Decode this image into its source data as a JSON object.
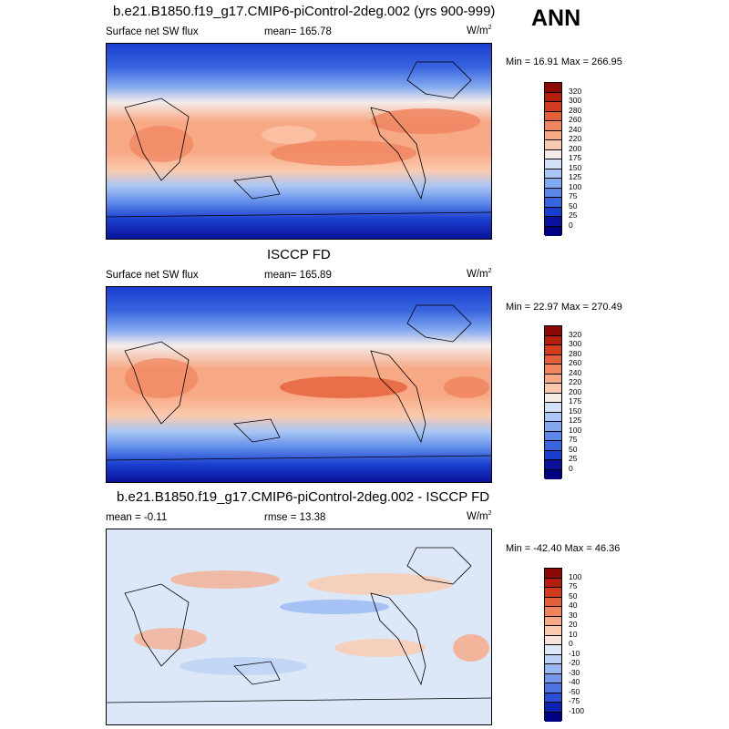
{
  "season": "ANN",
  "palette_full": [
    "#ffffff",
    "#000000",
    "#08088a",
    "#0a1ec8",
    "#1432d2",
    "#1e50e0",
    "#2864e6",
    "#3c82f0",
    "#5a9bf5",
    "#8cb9fa",
    "#b4d2fa",
    "#dce9f5",
    "#fae6dc",
    "#fad2b9",
    "#faaf8c",
    "#f58c64",
    "#eb6446",
    "#e63c28",
    "#c81e14",
    "#961006"
  ],
  "panels": [
    {
      "title": "b.e21.B1850.f19_g17.CMIP6-piControl-2deg.002 (yrs 900-999)",
      "left_label": "Surface net SW flux",
      "center_label": "mean= 165.78",
      "units_base": "W/m",
      "units_exp": "2",
      "minmax": "Min =  16.91 Max = 266.95",
      "colorbar_labels": [
        "320",
        "300",
        "280",
        "260",
        "240",
        "220",
        "200",
        "175",
        "150",
        "125",
        "100",
        "75",
        "50",
        "25",
        "0"
      ]
    },
    {
      "title": "ISCCP FD",
      "left_label": "Surface net SW flux",
      "center_label": "mean= 165.89",
      "units_base": "W/m",
      "units_exp": "2",
      "minmax": "Min =  22.97 Max = 270.49",
      "colorbar_labels": [
        "320",
        "300",
        "280",
        "260",
        "240",
        "220",
        "200",
        "175",
        "150",
        "125",
        "100",
        "75",
        "50",
        "25",
        "0"
      ]
    },
    {
      "title": "b.e21.B1850.f19_g17.CMIP6-piControl-2deg.002 - ISCCP FD",
      "left_label": "mean =  -0.11",
      "center_label": "rmse =  13.38",
      "units_base": "W/m",
      "units_exp": "2",
      "minmax": "Min = -42.40 Max =  46.36",
      "colorbar_labels": [
        "100",
        "75",
        "50",
        "40",
        "30",
        "20",
        "10",
        "0",
        "-10",
        "-20",
        "-30",
        "-40",
        "-50",
        "-75",
        "-100"
      ]
    }
  ],
  "chart_data": [
    {
      "type": "heatmap",
      "title": "b.e21.B1850.f19_g17.CMIP6-piControl-2deg.002 (yrs 900-999)",
      "variable": "Surface net SW flux",
      "units": "W/m2",
      "mean": 165.78,
      "min": 16.91,
      "max": 266.95,
      "contour_levels": [
        0,
        25,
        50,
        75,
        100,
        125,
        150,
        175,
        200,
        220,
        240,
        260,
        280,
        300,
        320
      ]
    },
    {
      "type": "heatmap",
      "title": "ISCCP FD",
      "variable": "Surface net SW flux",
      "units": "W/m2",
      "mean": 165.89,
      "min": 22.97,
      "max": 270.49,
      "contour_levels": [
        0,
        25,
        50,
        75,
        100,
        125,
        150,
        175,
        200,
        220,
        240,
        260,
        280,
        300,
        320
      ]
    },
    {
      "type": "heatmap",
      "title": "b.e21.B1850.f19_g17.CMIP6-piControl-2deg.002 - ISCCP FD",
      "units": "W/m2",
      "mean": -0.11,
      "rmse": 13.38,
      "min": -42.4,
      "max": 46.36,
      "contour_levels": [
        -100,
        -75,
        -50,
        -40,
        -30,
        -20,
        -10,
        0,
        10,
        20,
        30,
        40,
        50,
        75,
        100
      ]
    }
  ],
  "colorbar_colors_abs": [
    "#8b0a06",
    "#b41e0e",
    "#d23c1e",
    "#e4603a",
    "#f08560",
    "#f7a884",
    "#fbcaae",
    "#f5ecea",
    "#d2e1f7",
    "#aac7f5",
    "#82a9f0",
    "#5a87e8",
    "#3864de",
    "#1a3fcf",
    "#0a129a",
    "#000083"
  ],
  "colorbar_colors_diff": [
    "#8b0a06",
    "#b41e0e",
    "#d23c1e",
    "#e4603a",
    "#f08560",
    "#f7a884",
    "#fbcaae",
    "#f7e3da",
    "#dce8f7",
    "#bcd2f5",
    "#99b8f2",
    "#7599ea",
    "#4d74e0",
    "#2a4fd2",
    "#0e22b0",
    "#000083"
  ]
}
